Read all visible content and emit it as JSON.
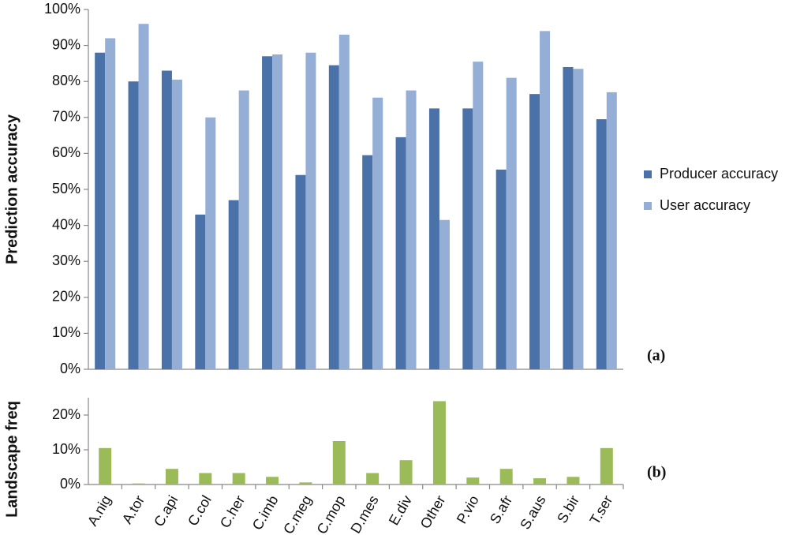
{
  "chart_data": [
    {
      "type": "bar",
      "y_label": "Prediction accuracy",
      "annotation": "(a)",
      "legend": "right",
      "ylim": [
        0,
        100
      ],
      "yticks": [
        {
          "value": 0,
          "label": "0%"
        },
        {
          "value": 10,
          "label": "10%"
        },
        {
          "value": 20,
          "label": "20%"
        },
        {
          "value": 30,
          "label": "30%"
        },
        {
          "value": 40,
          "label": "40%"
        },
        {
          "value": 50,
          "label": "50%"
        },
        {
          "value": 60,
          "label": "60%"
        },
        {
          "value": 70,
          "label": "70%"
        },
        {
          "value": 80,
          "label": "80%"
        },
        {
          "value": 90,
          "label": "90%"
        },
        {
          "value": 100,
          "label": "100%"
        }
      ],
      "series": [
        {
          "name": "Producer accuracy",
          "color": "#4a72a8",
          "values": [
            88,
            80,
            83,
            43,
            47,
            87,
            54,
            84.5,
            59.5,
            64.5,
            72.5,
            72.5,
            55.5,
            76.5,
            84,
            69.5
          ]
        },
        {
          "name": "User accuracy",
          "color": "#94aed6",
          "values": [
            92,
            96,
            80.5,
            70,
            77.5,
            87.5,
            88,
            93,
            75.5,
            77.5,
            41.5,
            85.5,
            81,
            94,
            83.5,
            77
          ]
        }
      ]
    },
    {
      "type": "bar",
      "y_label": "Landscape freq",
      "annotation": "(b)",
      "color": "#9bbb59",
      "ylim": [
        0,
        25
      ],
      "yticks": [
        {
          "value": 0,
          "label": "0%"
        },
        {
          "value": 10,
          "label": "10%"
        },
        {
          "value": 20,
          "label": "20%"
        }
      ],
      "categories": [
        "A.nig",
        "A.tor",
        "C.api",
        "C.col",
        "C.her",
        "C.imb",
        "C.meg",
        "C.mop",
        "D.mes",
        "E.div",
        "Other",
        "P.vio",
        "S.afr",
        "S.aus",
        "S.bir",
        "T.ser"
      ],
      "values": [
        10.5,
        0.3,
        4.5,
        3.3,
        3.3,
        2.2,
        0.6,
        12.5,
        3.3,
        7,
        24,
        2,
        4.5,
        1.8,
        2.2,
        10.5
      ]
    }
  ]
}
